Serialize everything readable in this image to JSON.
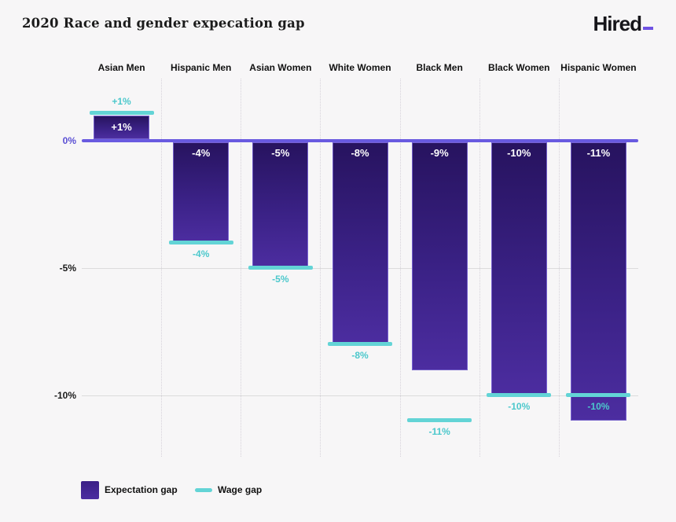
{
  "page": {
    "title": "2020 Race and gender expecation gap",
    "logo_text": "Hired"
  },
  "legend": {
    "expectation_label": "Expectation gap",
    "wage_label": "Wage gap"
  },
  "colors": {
    "background": "#f7f6f7",
    "bar_gradient_top": "#27135f",
    "bar_gradient_bottom": "#4c2da0",
    "zero_line": "#695ae0",
    "wage_teal": "#63d4d6",
    "wage_text_teal": "#4cc8cc",
    "gridline": "#dcdcdc",
    "logo_accent": "#6f52e3"
  },
  "chart_data": {
    "type": "bar",
    "title": "2020 Race and gender expecation gap",
    "categories": [
      "Asian Men",
      "Hispanic Men",
      "Asian Women",
      "White Women",
      "Black Men",
      "Black Women",
      "Hispanic Women"
    ],
    "series": [
      {
        "name": "Expectation gap",
        "values": [
          1,
          -4,
          -5,
          -8,
          -9,
          -10,
          -11
        ]
      },
      {
        "name": "Wage gap",
        "values": [
          1,
          -4,
          -5,
          -8,
          -11,
          -10,
          -10
        ]
      }
    ],
    "bar_labels": [
      "+1%",
      "-4%",
      "-5%",
      "-8%",
      "-9%",
      "-10%",
      "-11%"
    ],
    "wage_labels": [
      "+1%",
      "-4%",
      "-5%",
      "-8%",
      "-11%",
      "-10%",
      "-10%"
    ],
    "y_ticks": [
      {
        "label": "0%",
        "value": 0
      },
      {
        "label": "-5%",
        "value": -5
      },
      {
        "label": "-10%",
        "value": -10
      }
    ],
    "ylim": [
      -12.4,
      2.4
    ],
    "grid": "horizontal-and-dotted-column-separators",
    "legend_position": "bottom-left"
  }
}
